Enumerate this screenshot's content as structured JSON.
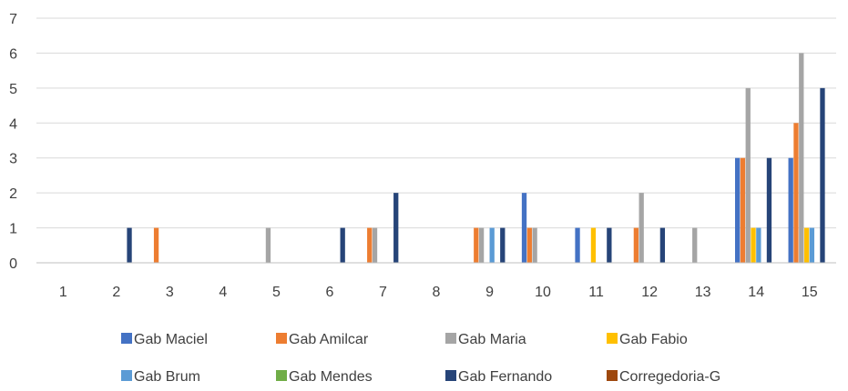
{
  "chart_data": {
    "type": "bar",
    "title": "",
    "xlabel": "",
    "ylabel": "",
    "ylim": [
      0,
      7
    ],
    "yticks": [
      "0",
      "1",
      "2",
      "3",
      "4",
      "5",
      "6",
      "7"
    ],
    "grid": true,
    "legend_position": "bottom",
    "categories": [
      "1",
      "2",
      "3",
      "4",
      "5",
      "6",
      "7",
      "8",
      "9",
      "10",
      "11",
      "12",
      "13",
      "14",
      "15"
    ],
    "series": [
      {
        "name": "Gab Maciel",
        "color": "#4472C4",
        "values": [
          0,
          0,
          0,
          0,
          0,
          0,
          0,
          0,
          0,
          2,
          1,
          0,
          0,
          3,
          3
        ]
      },
      {
        "name": "Gab Amilcar",
        "color": "#ED7D31",
        "values": [
          0,
          0,
          1,
          0,
          0,
          0,
          1,
          0,
          1,
          1,
          0,
          1,
          0,
          3,
          4
        ]
      },
      {
        "name": "Gab Maria",
        "color": "#A5A5A5",
        "values": [
          0,
          0,
          0,
          0,
          1,
          0,
          1,
          0,
          1,
          1,
          0,
          2,
          1,
          5,
          6
        ]
      },
      {
        "name": "Gab Fabio",
        "color": "#FFC000",
        "values": [
          0,
          0,
          0,
          0,
          0,
          0,
          0,
          0,
          0,
          0,
          1,
          0,
          0,
          1,
          1
        ]
      },
      {
        "name": "Gab Brum",
        "color": "#5B9BD5",
        "values": [
          0,
          0,
          0,
          0,
          0,
          0,
          0,
          0,
          1,
          0,
          0,
          0,
          0,
          1,
          1
        ]
      },
      {
        "name": "Gab Mendes",
        "color": "#70AD47",
        "values": [
          0,
          0,
          0,
          0,
          0,
          0,
          0,
          0,
          0,
          0,
          0,
          0,
          0,
          0,
          0
        ]
      },
      {
        "name": "Gab Fernando",
        "color": "#264478",
        "values": [
          0,
          1,
          0,
          0,
          0,
          1,
          2,
          0,
          1,
          0,
          1,
          1,
          0,
          3,
          5
        ]
      },
      {
        "name": "Corregedoria-G",
        "color": "#9E480E",
        "values": [
          0,
          0,
          0,
          0,
          0,
          0,
          0,
          0,
          0,
          0,
          0,
          0,
          0,
          0,
          0
        ]
      }
    ]
  }
}
